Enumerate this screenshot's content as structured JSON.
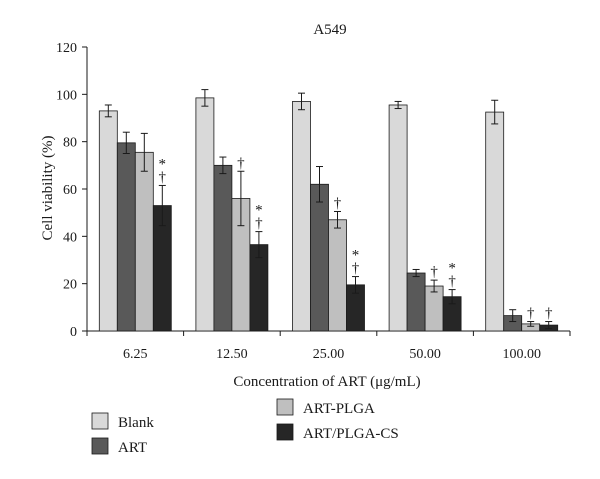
{
  "chart_data": {
    "type": "bar",
    "title": "A549",
    "xlabel": "Concentration of ART (μg/mL)",
    "ylabel": "Cell viability (%)",
    "ylim": [
      0,
      120
    ],
    "yticks": [
      0,
      20,
      40,
      60,
      80,
      100,
      120
    ],
    "categories": [
      "6.25",
      "12.50",
      "25.00",
      "50.00",
      "100.00"
    ],
    "grid": false,
    "legend_position": "bottom",
    "series": [
      {
        "name": "Blank",
        "color": "#d9d9d9",
        "values": [
          93,
          98.5,
          97,
          95.5,
          92.5
        ],
        "errors": [
          2.5,
          3.5,
          3.5,
          1.5,
          5
        ],
        "markers": [
          "",
          "",
          "",
          "",
          ""
        ]
      },
      {
        "name": "ART",
        "color": "#595959",
        "values": [
          79.5,
          70,
          62,
          24.5,
          6.5
        ],
        "errors": [
          4.5,
          3.5,
          7.5,
          1.5,
          2.5
        ],
        "markers": [
          "",
          "",
          "",
          "",
          ""
        ]
      },
      {
        "name": "ART-PLGA",
        "color": "#bfbfbf",
        "values": [
          75.5,
          56,
          47,
          19,
          3
        ],
        "errors": [
          8,
          11.5,
          3.5,
          2.5,
          1
        ],
        "markers": [
          "",
          "†",
          "†",
          "†",
          "†"
        ]
      },
      {
        "name": "ART/PLGA-CS",
        "color": "#262626",
        "values": [
          53,
          36.5,
          19.5,
          14.5,
          2.5
        ],
        "errors": [
          8.5,
          5.5,
          3.5,
          3,
          1.5
        ],
        "markers": [
          "*†",
          "*†",
          "*†",
          "*†",
          "†"
        ]
      }
    ]
  }
}
